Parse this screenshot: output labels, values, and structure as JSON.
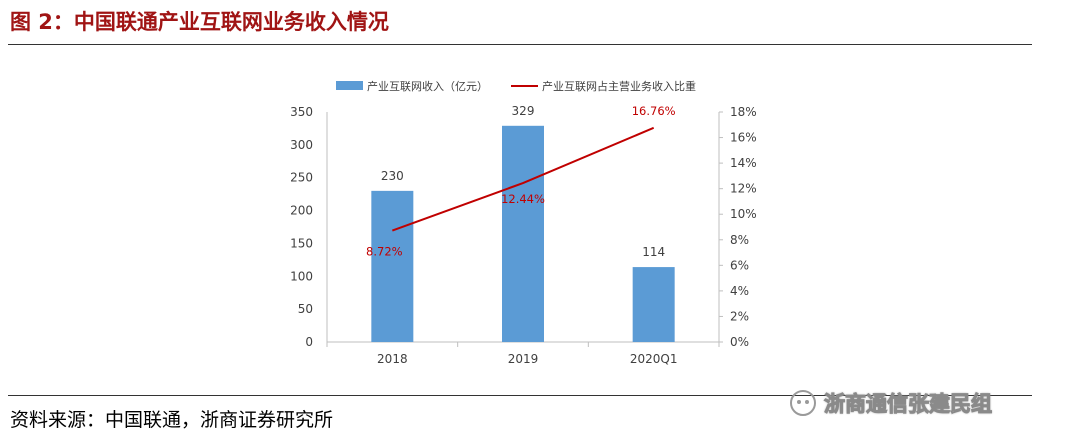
{
  "figure_title": "图 2：中国联通产业互联网业务收入情况",
  "source_note": "资料来源：中国联通，浙商证券研究所",
  "watermark": "浙商通信张建民组",
  "colors": {
    "title": "#a01414",
    "bar": "#5b9bd5",
    "line": "#c00000",
    "axis": "#bfbfbf",
    "tick_text": "#404040"
  },
  "chart_data": {
    "type": "bar",
    "categories": [
      "2018",
      "2019",
      "2020Q1"
    ],
    "series": [
      {
        "name": "产业互联网收入（亿元）",
        "kind": "bar",
        "axis": "left",
        "values": [
          230,
          329,
          114
        ],
        "labels": [
          "230",
          "329",
          "114"
        ]
      },
      {
        "name": "产业互联网占主营业务收入比重",
        "kind": "line",
        "axis": "right",
        "values": [
          8.72,
          12.44,
          16.76
        ],
        "labels": [
          "8.72%",
          "12.44%",
          "16.76%"
        ]
      }
    ],
    "y_left": {
      "min": 0,
      "max": 350,
      "ticks": [
        "0",
        "50",
        "100",
        "150",
        "200",
        "250",
        "300",
        "350"
      ]
    },
    "y_right": {
      "min": 0,
      "max": 18,
      "ticks": [
        "0%",
        "2%",
        "4%",
        "6%",
        "8%",
        "10%",
        "12%",
        "14%",
        "16%",
        "18%"
      ]
    },
    "legend_position": "top"
  }
}
